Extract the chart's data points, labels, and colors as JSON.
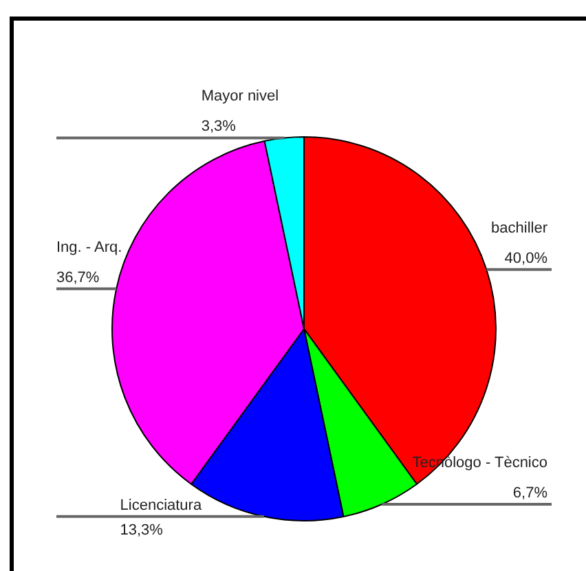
{
  "chart_data": {
    "type": "pie",
    "categories": [
      "bachiller",
      "Tecnòlogo - Tècnico",
      "Licenciatura",
      "Ing. - Arq.",
      "Mayor nivel"
    ],
    "values": [
      40.0,
      6.7,
      13.3,
      36.7,
      3.3
    ],
    "colors": [
      "#ff0000",
      "#00ff00",
      "#0000ff",
      "#ff00ff",
      "#00ffff"
    ],
    "value_labels": [
      "40,0%",
      "6,7%",
      "13,3%",
      "36,7%",
      "3,3%"
    ]
  }
}
